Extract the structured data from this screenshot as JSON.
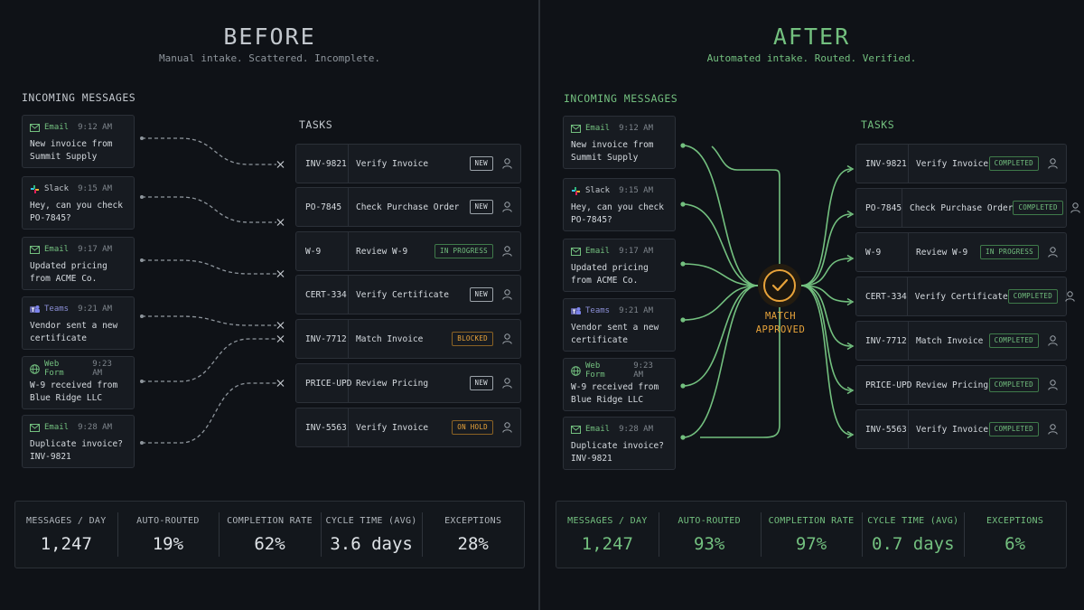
{
  "before": {
    "title": "BEFORE",
    "subtitle": "Manual intake. Scattered. Incomplete.",
    "incoming_label": "INCOMING MESSAGES",
    "tasks_label": "TASKS",
    "messages": [
      {
        "source": "Email",
        "icon": "email-icon",
        "time": "9:12 AM",
        "text": "New invoice from\nSummit Supply"
      },
      {
        "source": "Slack",
        "icon": "slack-icon",
        "time": "9:15 AM",
        "text": "Hey, can you check\nPO-7845?"
      },
      {
        "source": "Email",
        "icon": "email-icon",
        "time": "9:17 AM",
        "text": "Updated pricing\nfrom ACME Co."
      },
      {
        "source": "Teams",
        "icon": "teams-icon",
        "time": "9:21 AM",
        "text": "Vendor sent a new\ncertificate"
      },
      {
        "source": "Web Form",
        "icon": "globe-icon",
        "time": "9:23 AM",
        "text": "W-9 received from\nBlue Ridge LLC"
      },
      {
        "source": "Email",
        "icon": "email-icon",
        "time": "9:28 AM",
        "text": "Duplicate invoice?\nINV-9821"
      }
    ],
    "tasks": [
      {
        "id": "INV-9821",
        "name": "Verify Invoice",
        "status": "NEW"
      },
      {
        "id": "PO-7845",
        "name": "Check Purchase Order",
        "status": "NEW"
      },
      {
        "id": "W-9",
        "name": "Review W-9",
        "status": "IN PROGRESS"
      },
      {
        "id": "CERT-334",
        "name": "Verify Certificate",
        "status": "NEW"
      },
      {
        "id": "INV-7712",
        "name": "Match Invoice",
        "status": "BLOCKED"
      },
      {
        "id": "PRICE-UPD",
        "name": "Review Pricing",
        "status": "NEW"
      },
      {
        "id": "INV-5563",
        "name": "Verify Invoice",
        "status": "ON HOLD"
      }
    ],
    "stats": [
      {
        "label": "MESSAGES / DAY",
        "value": "1,247"
      },
      {
        "label": "AUTO-ROUTED",
        "value": "19%"
      },
      {
        "label": "COMPLETION RATE",
        "value": "62%"
      },
      {
        "label": "CYCLE TIME (AVG)",
        "value": "3.6 days"
      },
      {
        "label": "EXCEPTIONS",
        "value": "28%"
      }
    ]
  },
  "after": {
    "title": "AFTER",
    "subtitle": "Automated intake. Routed. Verified.",
    "incoming_label": "INCOMING MESSAGES",
    "tasks_label": "TASKS",
    "hub_label": "MATCH\nAPPROVED",
    "messages": [
      {
        "source": "Email",
        "icon": "email-icon",
        "time": "9:12 AM",
        "text": "New invoice from\nSummit Supply"
      },
      {
        "source": "Slack",
        "icon": "slack-icon",
        "time": "9:15 AM",
        "text": "Hey, can you check\nPO-7845?"
      },
      {
        "source": "Email",
        "icon": "email-icon",
        "time": "9:17 AM",
        "text": "Updated pricing\nfrom ACME Co."
      },
      {
        "source": "Teams",
        "icon": "teams-icon",
        "time": "9:21 AM",
        "text": "Vendor sent a new\ncertificate"
      },
      {
        "source": "Web Form",
        "icon": "globe-icon",
        "time": "9:23 AM",
        "text": "W-9 received from\nBlue Ridge LLC"
      },
      {
        "source": "Email",
        "icon": "email-icon",
        "time": "9:28 AM",
        "text": "Duplicate invoice?\nINV-9821"
      }
    ],
    "tasks": [
      {
        "id": "INV-9821",
        "name": "Verify Invoice",
        "status": "COMPLETED"
      },
      {
        "id": "PO-7845",
        "name": "Check Purchase Order",
        "status": "COMPLETED"
      },
      {
        "id": "W-9",
        "name": "Review W-9",
        "status": "IN PROGRESS"
      },
      {
        "id": "CERT-334",
        "name": "Verify Certificate",
        "status": "COMPLETED"
      },
      {
        "id": "INV-7712",
        "name": "Match Invoice",
        "status": "COMPLETED"
      },
      {
        "id": "PRICE-UPD",
        "name": "Review Pricing",
        "status": "COMPLETED"
      },
      {
        "id": "INV-5563",
        "name": "Verify Invoice",
        "status": "COMPLETED"
      }
    ],
    "stats": [
      {
        "label": "MESSAGES / DAY",
        "value": "1,247"
      },
      {
        "label": "AUTO-ROUTED",
        "value": "93%"
      },
      {
        "label": "COMPLETION RATE",
        "value": "97%"
      },
      {
        "label": "CYCLE TIME (AVG)",
        "value": "0.7 days"
      },
      {
        "label": "EXCEPTIONS",
        "value": "6%"
      }
    ]
  },
  "colors": {
    "accent_green": "#73c07f",
    "amber": "#e8a33a",
    "neutral_line": "#8e959c",
    "status_new": "#d6dbe0",
    "status_in_progress": "#73c07f",
    "status_blocked": "#e8a33a",
    "status_on_hold": "#e8a33a",
    "status_completed": "#73c07f"
  }
}
